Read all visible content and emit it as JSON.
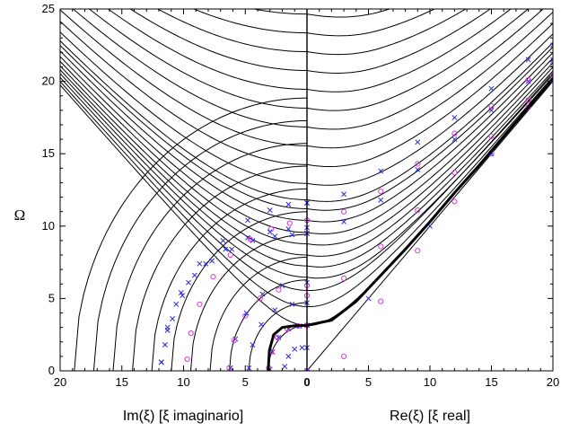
{
  "chart_data": {
    "type": "scatter",
    "ylabel": "Ω",
    "xlabel_left": "Im(ξ) [ξ imaginario]",
    "xlabel_right": "Re(ξ)  [ξ real]",
    "x_left_range": [
      20,
      0
    ],
    "x_right_range": [
      0,
      20
    ],
    "ylim": [
      0,
      25
    ],
    "x_left_ticks": [
      "20",
      "15",
      "10",
      "5",
      "0"
    ],
    "x_right_ticks": [
      "5",
      "10",
      "15",
      "20"
    ],
    "y_ticks": [
      "0",
      "5",
      "10",
      "15",
      "20",
      "25"
    ],
    "grid": false,
    "colors": {
      "lines": "#000000",
      "cross_markers": "#2a2ad8",
      "circle_markers": "#d63ad6",
      "bold_curve": "#000000"
    },
    "background_curves_im_intercepts": [
      3.14,
      4.71,
      6.28,
      7.85,
      9.42,
      10.99,
      12.57,
      14.14,
      15.71,
      17.28,
      18.85
    ],
    "background_curves_omega_at_zero": [
      3.14,
      4.44,
      5.56,
      6.47,
      7.25,
      8.0,
      8.78,
      9.56,
      10.4,
      11.2,
      11.82,
      12.95,
      14.25,
      15.55,
      16.85,
      18.15,
      19.45,
      20.75,
      22.05,
      23.35,
      24.65
    ],
    "series": [
      {
        "marker": "cross",
        "branches": [
          {
            "side": "imaginary",
            "points": [
              [
                11.8,
                0.6
              ],
              [
                11.3,
                2.8
              ],
              [
                10.6,
                4.6
              ],
              [
                9.6,
                6.1
              ],
              [
                8.2,
                7.4
              ],
              [
                6.6,
                8.4
              ],
              [
                4.8,
                9.2
              ],
              [
                3.0,
                9.6
              ],
              [
                1.5,
                9.8
              ],
              [
                0,
                9.9
              ]
            ]
          },
          {
            "side": "imaginary",
            "points": [
              [
                11.8,
                0.6
              ],
              [
                11.5,
                1.8
              ],
              [
                10.9,
                3.6
              ],
              [
                10.1,
                5.2
              ],
              [
                9.1,
                6.6
              ],
              [
                7.7,
                7.6
              ],
              [
                6.1,
                8.4
              ],
              [
                4.4,
                9.0
              ],
              [
                2.6,
                9.3
              ],
              [
                1.2,
                9.4
              ],
              [
                0,
                9.5
              ]
            ]
          },
          {
            "side": "imaginary",
            "points": [
              [
                11.8,
                0.6
              ],
              [
                11.3,
                3.0
              ],
              [
                10.2,
                5.4
              ],
              [
                8.7,
                7.4
              ],
              [
                6.8,
                9.0
              ],
              [
                4.8,
                10.4
              ],
              [
                3.0,
                11.1
              ],
              [
                1.5,
                11.5
              ],
              [
                0,
                11.6
              ]
            ]
          },
          {
            "side": "imaginary",
            "points": [
              [
                3.0,
                0.1
              ],
              [
                2.8,
                1.3
              ],
              [
                2.3,
                2.3
              ],
              [
                1.5,
                2.9
              ],
              [
                0.6,
                3.1
              ],
              [
                0,
                3.14
              ]
            ]
          },
          {
            "side": "imaginary",
            "points": [
              [
                1.8,
                0.3
              ],
              [
                1.5,
                1.0
              ],
              [
                1.0,
                1.5
              ],
              [
                0.4,
                1.6
              ],
              [
                0,
                1.6
              ]
            ]
          },
          {
            "side": "imaginary",
            "points": [
              [
                6.2,
                0.2
              ],
              [
                5.8,
                2.2
              ],
              [
                4.9,
                4.0
              ],
              [
                3.6,
                5.3
              ],
              [
                2.0,
                5.9
              ],
              [
                0,
                6.1
              ]
            ]
          },
          {
            "side": "imaginary",
            "points": [
              [
                4.7,
                0.2
              ],
              [
                4.4,
                1.8
              ],
              [
                3.7,
                3.2
              ],
              [
                2.6,
                4.2
              ],
              [
                1.2,
                4.6
              ],
              [
                0,
                4.7
              ]
            ]
          },
          {
            "side": "real",
            "points": [
              [
                0,
                11.6
              ],
              [
                3.0,
                12.2
              ],
              [
                6.0,
                13.8
              ],
              [
                9.0,
                15.8
              ],
              [
                12.0,
                17.5
              ],
              [
                15.0,
                19.5
              ],
              [
                18.0,
                21.5
              ],
              [
                20.0,
                22.5
              ]
            ]
          },
          {
            "side": "real",
            "points": [
              [
                0,
                9.5
              ],
              [
                3.0,
                10.3
              ],
              [
                6.0,
                11.8
              ],
              [
                9.0,
                13.9
              ],
              [
                12.0,
                16.0
              ],
              [
                15.0,
                18.0
              ],
              [
                18.0,
                20.0
              ],
              [
                20.0,
                21.5
              ]
            ]
          },
          {
            "side": "real",
            "points": [
              [
                0,
                0.0
              ],
              [
                5.0,
                5.0
              ],
              [
                10.0,
                10.0
              ],
              [
                15.0,
                15.0
              ],
              [
                20.0,
                20.0
              ]
            ]
          }
        ]
      },
      {
        "marker": "circle",
        "branches": [
          {
            "side": "imaginary",
            "points": [
              [
                9.7,
                0.8
              ],
              [
                9.4,
                2.6
              ],
              [
                8.7,
                4.6
              ],
              [
                7.6,
                6.5
              ],
              [
                6.2,
                8.0
              ],
              [
                4.6,
                9.1
              ],
              [
                2.9,
                9.8
              ],
              [
                1.4,
                10.2
              ],
              [
                0,
                10.4
              ]
            ]
          },
          {
            "side": "imaginary",
            "points": [
              [
                3.1,
                0.2
              ],
              [
                2.9,
                1.3
              ],
              [
                2.4,
                2.3
              ],
              [
                1.6,
                2.9
              ],
              [
                0.7,
                3.1
              ],
              [
                0,
                3.14
              ]
            ]
          },
          {
            "side": "imaginary",
            "points": [
              [
                6.3,
                0.2
              ],
              [
                5.9,
                2.1
              ],
              [
                5.0,
                3.8
              ],
              [
                3.8,
                5.0
              ],
              [
                2.3,
                5.6
              ],
              [
                0,
                5.9
              ]
            ]
          },
          {
            "side": "real",
            "points": [
              [
                0,
                10.4
              ],
              [
                3.0,
                11.0
              ],
              [
                6.0,
                12.4
              ],
              [
                9.0,
                14.3
              ],
              [
                12.0,
                16.4
              ],
              [
                15.0,
                18.3
              ],
              [
                18.0,
                20.1
              ],
              [
                20.0,
                21.2
              ]
            ]
          },
          {
            "side": "real",
            "points": [
              [
                0,
                5.2
              ],
              [
                3.0,
                6.4
              ],
              [
                6.0,
                8.6
              ],
              [
                9.0,
                11.1
              ],
              [
                12.0,
                13.7
              ],
              [
                15.0,
                16.2
              ],
              [
                18.0,
                18.7
              ],
              [
                20.0,
                20.4
              ]
            ]
          },
          {
            "side": "real",
            "points": [
              [
                0,
                0.0
              ],
              [
                3.0,
                1.0
              ],
              [
                6.0,
                4.8
              ],
              [
                9.0,
                8.3
              ],
              [
                12.0,
                11.7
              ],
              [
                15.0,
                15.0
              ],
              [
                18.0,
                18.2
              ],
              [
                20.0,
                20.1
              ]
            ]
          }
        ]
      }
    ],
    "bold_curve": {
      "imaginary": [
        [
          3.14,
          0.0
        ],
        [
          3.05,
          1.4
        ],
        [
          2.7,
          2.5
        ],
        [
          2.0,
          3.0
        ],
        [
          1.0,
          3.12
        ],
        [
          0,
          3.14
        ]
      ],
      "real": [
        [
          0,
          3.14
        ],
        [
          2.0,
          3.5
        ],
        [
          4.0,
          4.8
        ],
        [
          6.0,
          6.6
        ],
        [
          8.0,
          8.4
        ],
        [
          10.0,
          10.3
        ],
        [
          12.0,
          12.3
        ],
        [
          14.0,
          14.2
        ],
        [
          16.0,
          16.2
        ],
        [
          18.0,
          18.2
        ],
        [
          20.0,
          20.2
        ]
      ]
    }
  }
}
